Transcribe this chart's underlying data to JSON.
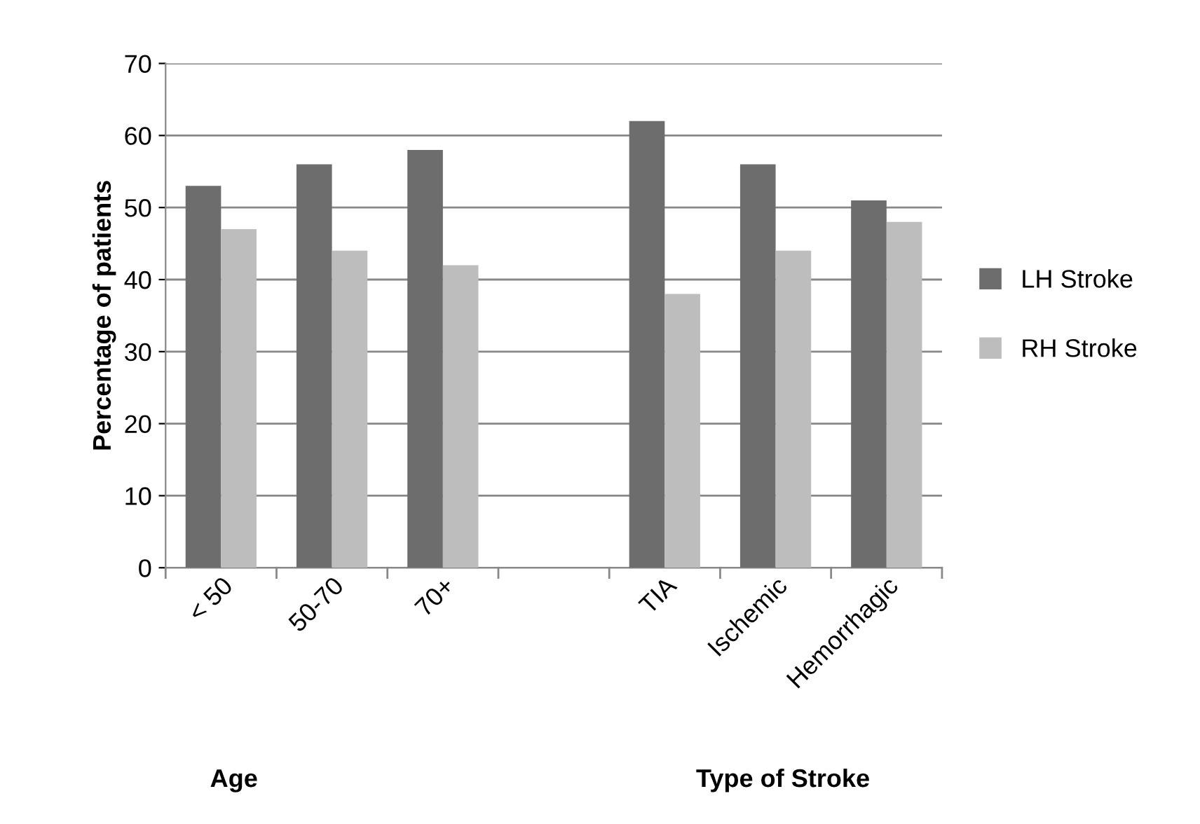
{
  "chart_data": {
    "type": "bar",
    "ylabel": "Percentage of patients",
    "categories": [
      "< 50",
      "50-70",
      "70+",
      null,
      "TIA",
      "Ischemic",
      "Hemorrhagic"
    ],
    "series": [
      {
        "name": "LH Stroke",
        "color": "#6d6d6d",
        "values": [
          53,
          56,
          58,
          null,
          62,
          56,
          51
        ]
      },
      {
        "name": "RH Stroke",
        "color": "#bdbdbd",
        "values": [
          47,
          44,
          42,
          null,
          38,
          44,
          48
        ]
      }
    ],
    "ylim": [
      0,
      70
    ],
    "yticks": [
      0,
      10,
      20,
      30,
      40,
      50,
      60,
      70
    ],
    "grid": "y",
    "legend": "right",
    "annotations": [
      "Age",
      "Type of Stroke"
    ]
  }
}
